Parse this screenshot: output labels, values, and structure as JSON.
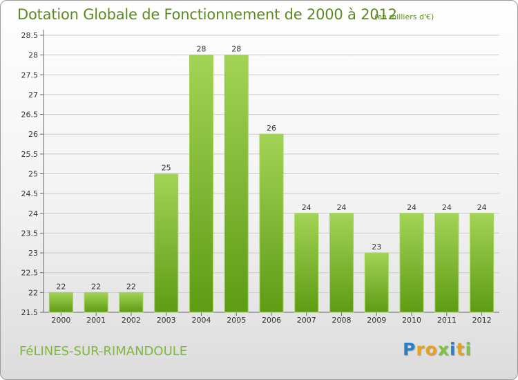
{
  "header": {
    "title": "Dotation Globale de Fonctionnement de 2000 à 2012",
    "subtitle": "(en milliers d'€)"
  },
  "footer": {
    "commune": "FéLINES-SUR-RIMANDOULE",
    "logo_letters": [
      "P",
      "r",
      "o",
      "x",
      "i",
      "t",
      "i"
    ],
    "logo_colors": [
      "#2a7fc9",
      "#e8a21a",
      "#e8a21a",
      "#7cc243",
      "#2a7fc9",
      "#e8a21a",
      "#7cc243"
    ]
  },
  "colors": {
    "bar_light": "#a3d356",
    "bar_dark": "#5e9c14",
    "grid": "#cccccc",
    "axis": "#666666"
  },
  "chart_data": {
    "type": "bar",
    "title": "Dotation Globale de Fonctionnement de 2000 à 2012",
    "xlabel": "",
    "ylabel": "",
    "categories": [
      "2000",
      "2001",
      "2002",
      "2003",
      "2004",
      "2005",
      "2006",
      "2007",
      "2008",
      "2009",
      "2010",
      "2011",
      "2012"
    ],
    "values": [
      22,
      22,
      22,
      25,
      28,
      28,
      26,
      24,
      24,
      23,
      24,
      24,
      24
    ],
    "ylim": [
      21.5,
      28.5
    ],
    "yticks": [
      "21.5",
      "22",
      "22.5",
      "23",
      "23.5",
      "24",
      "24.5",
      "25",
      "25.5",
      "26",
      "26.5",
      "27",
      "27.5",
      "28",
      "28.5"
    ],
    "grid": true
  }
}
